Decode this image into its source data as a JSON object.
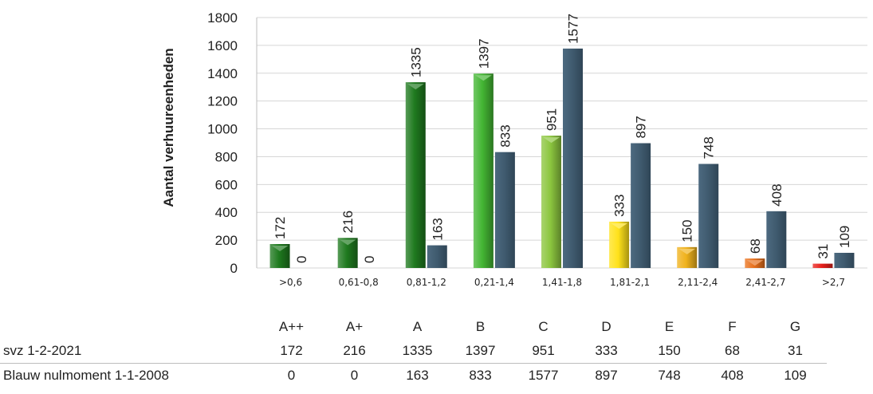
{
  "chart_data": {
    "type": "bar",
    "title": "",
    "xlabel": "",
    "ylabel": "Aantal verhuureenheden",
    "ylim": [
      0,
      1800
    ],
    "yticks": [
      0,
      200,
      400,
      600,
      800,
      1000,
      1200,
      1400,
      1600,
      1800
    ],
    "grid": true,
    "categories": [
      ">0,6",
      "0,61-0,8",
      "0,81-1,2",
      "0,21-1,4",
      "1,41-1,8",
      "1,81-2,1",
      "2,11-2,4",
      "2,41-2,7",
      ">2,7"
    ],
    "series": [
      {
        "name": "svz 1-2-2021",
        "values": [
          172,
          216,
          1335,
          1397,
          951,
          333,
          150,
          68,
          31
        ],
        "colors": [
          "#1f7a1f",
          "#1f7a1f",
          "#1f7a1f",
          "#43b533",
          "#8cc63f",
          "#ffe21a",
          "#f0b21c",
          "#e8701b",
          "#e8201b"
        ]
      },
      {
        "name": "Blauw nulmoment 1-1-2008",
        "values": [
          0,
          0,
          163,
          833,
          1577,
          897,
          748,
          408,
          109
        ],
        "color": "#3f5a6e"
      }
    ]
  },
  "table": {
    "labels": [
      "A++",
      "A+",
      "A",
      "B",
      "C",
      "D",
      "E",
      "F",
      "G"
    ],
    "rows": [
      {
        "name": "svz 1-2-2021",
        "values": [
          "172",
          "216",
          "1335",
          "1397",
          "951",
          "333",
          "150",
          "68",
          "31"
        ]
      },
      {
        "name": "Blauw nulmoment 1-1-2008",
        "values": [
          "0",
          "0",
          "163",
          "833",
          "1577",
          "897",
          "748",
          "408",
          "109"
        ]
      }
    ]
  }
}
